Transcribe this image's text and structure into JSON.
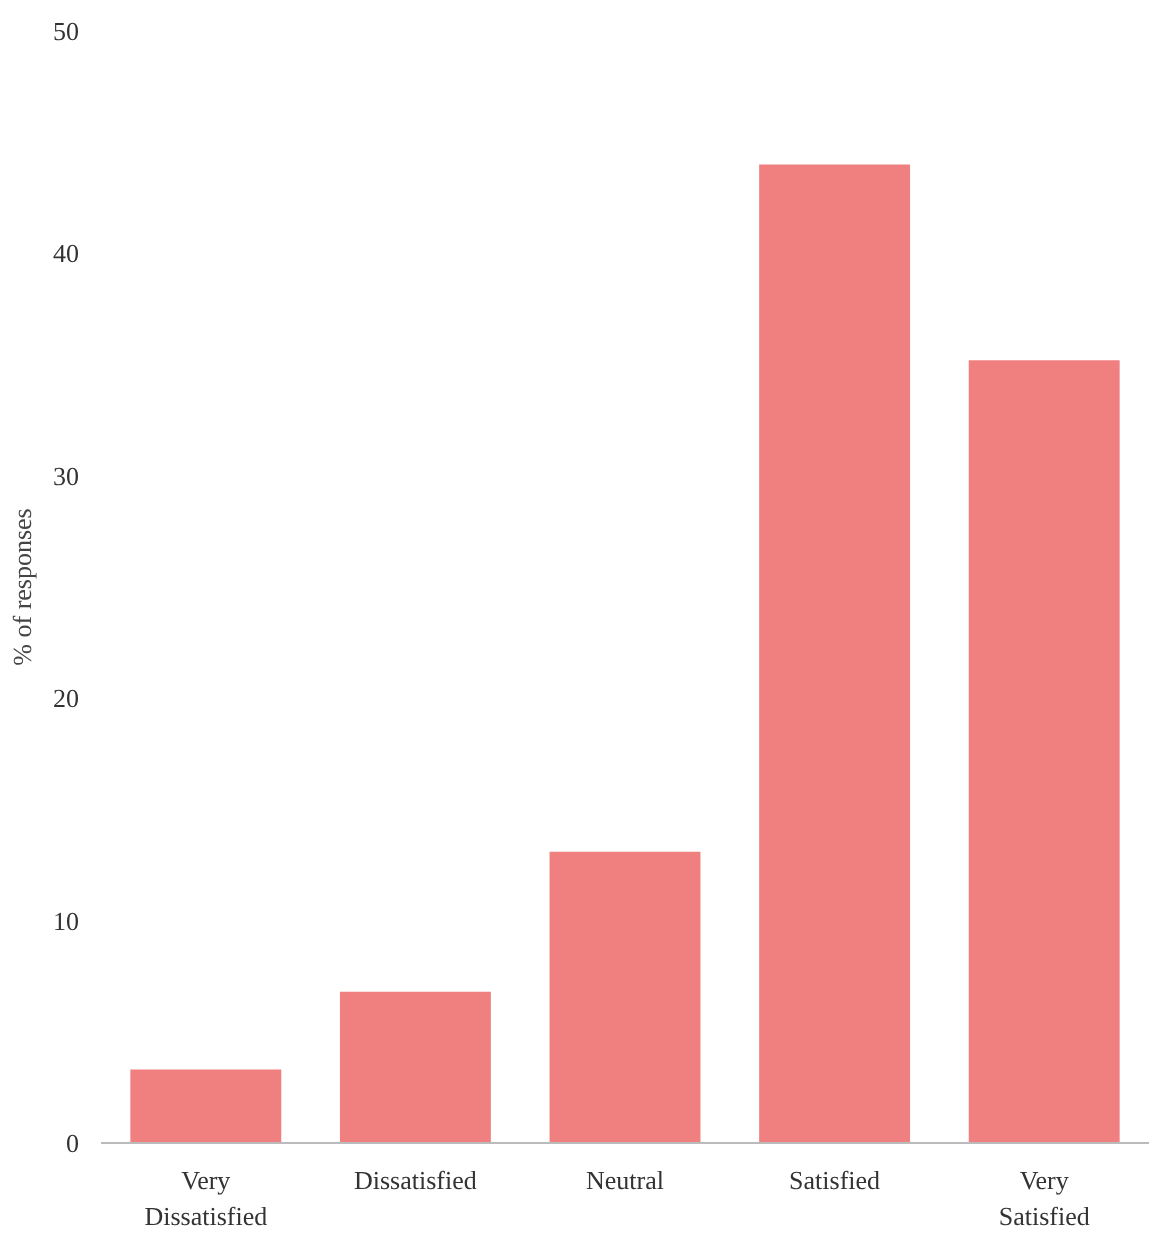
{
  "chart_data": {
    "type": "bar",
    "ylabel": "% of responses",
    "categories": [
      "Very\nDissatisfied",
      "Dissatisfied",
      "Neutral",
      "Satisfied",
      "Very\nSatisfied"
    ],
    "values": [
      3.3,
      6.8,
      13.1,
      44.0,
      35.2
    ],
    "color": "#f08080",
    "ylim": [
      0,
      50
    ],
    "yticks": [
      0,
      10,
      20,
      30,
      40,
      50
    ],
    "grid": false
  }
}
